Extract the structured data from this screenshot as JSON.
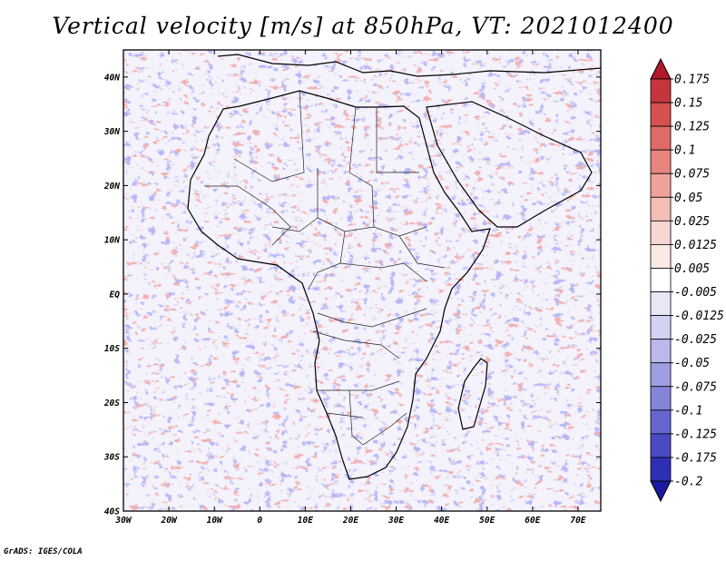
{
  "title": "Vertical velocity [m/s] at 850hPa, VT: 2021012400",
  "footer": "GrADS: IGES/COLA",
  "map": {
    "lon_range": [
      -30,
      75
    ],
    "lat_range": [
      -40,
      45
    ],
    "lon_labels": [
      "30W",
      "20W",
      "10W",
      "0",
      "10E",
      "20E",
      "30E",
      "40E",
      "50E",
      "60E",
      "70E"
    ],
    "lon_values": [
      -30,
      -20,
      -10,
      0,
      10,
      20,
      30,
      40,
      50,
      60,
      70
    ],
    "lat_labels": [
      "40N",
      "30N",
      "20N",
      "10N",
      "EQ",
      "10S",
      "20S",
      "30S",
      "40S"
    ],
    "lat_values": [
      40,
      30,
      20,
      10,
      0,
      -10,
      -20,
      -30,
      -40
    ]
  },
  "colorbar": {
    "levels": [
      "0.175",
      "0.15",
      "0.125",
      "0.1",
      "0.075",
      "0.05",
      "0.025",
      "0.0125",
      "0.005",
      "-0.005",
      "-0.0125",
      "-0.025",
      "-0.05",
      "-0.075",
      "-0.1",
      "-0.125",
      "-0.175",
      "-0.2"
    ],
    "colors": [
      "#b2182b",
      "#c6353e",
      "#d6504f",
      "#e06a66",
      "#e8857e",
      "#efa29a",
      "#f4bdb6",
      "#f8d6d1",
      "#fbe9e6",
      "#ffffff",
      "#e7e7f8",
      "#d2d2f2",
      "#b9b9ec",
      "#9e9ee3",
      "#8383da",
      "#6666cf",
      "#4a4ac4",
      "#2e2eb6",
      "#1a1aa0"
    ]
  }
}
